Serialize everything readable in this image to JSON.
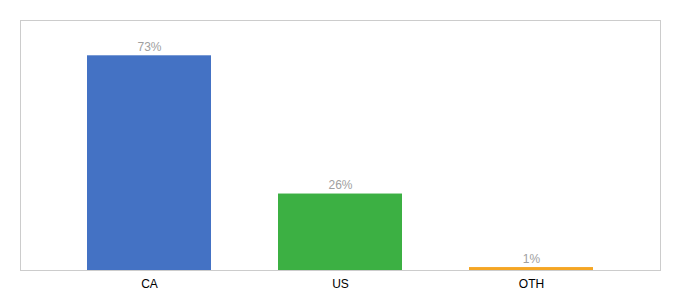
{
  "chart_data": {
    "type": "bar",
    "categories": [
      "CA",
      "US",
      "OTH"
    ],
    "values": [
      73,
      26,
      1
    ],
    "value_labels": [
      "73%",
      "26%",
      "1%"
    ],
    "colors": [
      "#4472c4",
      "#3cb043",
      "#f5a623"
    ],
    "ylim": [
      0,
      85
    ],
    "data_labels": true,
    "tick_labels": "x"
  }
}
